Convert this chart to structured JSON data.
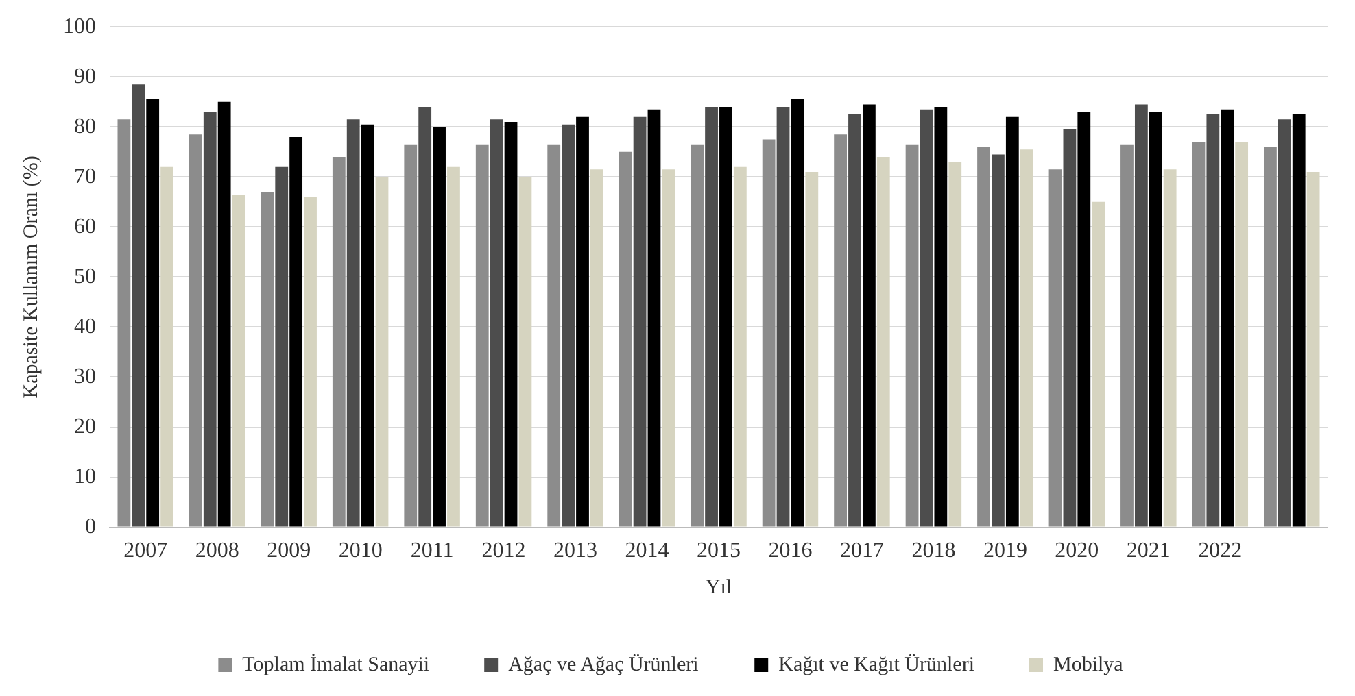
{
  "chart_data": {
    "type": "bar",
    "xlabel": "Yıl",
    "ylabel": "Kapasite Kullanım Oranı (%)",
    "categories": [
      "2007",
      "2008",
      "2009",
      "2010",
      "2011",
      "2012",
      "2013",
      "2014",
      "2015",
      "2016",
      "2017",
      "2018",
      "2019",
      "2020",
      "2021",
      "2022",
      null
    ],
    "series": [
      {
        "name": "Toplam İmalat Sanayii",
        "color": "#8c8c8c",
        "values": [
          81.5,
          78.5,
          67,
          74,
          76.5,
          76.5,
          76.5,
          75,
          76.5,
          77.5,
          78.5,
          76.5,
          76,
          71.5,
          76.5,
          77,
          76
        ]
      },
      {
        "name": "Ağaç ve Ağaç Ürünleri",
        "color": "#4d4d4d",
        "values": [
          88.5,
          83,
          72,
          81.5,
          84,
          81.5,
          80.5,
          82,
          84,
          84,
          82.5,
          83.5,
          74.5,
          79.5,
          84.5,
          82.5,
          81.5
        ]
      },
      {
        "name": "Kağıt ve Kağıt Ürünleri",
        "color": "#000000",
        "values": [
          85.5,
          85,
          78,
          80.5,
          80,
          81,
          82,
          83.5,
          84,
          85.5,
          84.5,
          84,
          82,
          83,
          83,
          83.5,
          82.5
        ]
      },
      {
        "name": "Mobilya",
        "color": "#d6d4c0",
        "values": [
          72,
          66.5,
          66,
          70,
          72,
          70,
          71.5,
          71.5,
          72,
          71,
          74,
          73,
          75.5,
          65,
          71.5,
          77,
          71
        ]
      }
    ],
    "ylim": [
      0,
      100
    ],
    "yticks": [
      0,
      10,
      20,
      30,
      40,
      50,
      60,
      70,
      80,
      90,
      100
    ],
    "grid": "y",
    "legend": "bottom"
  }
}
